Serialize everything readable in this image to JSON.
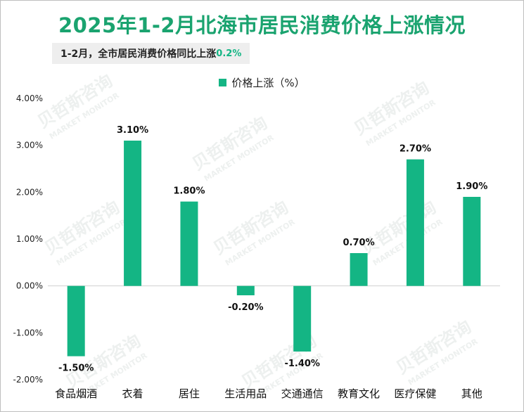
{
  "title": "2025年1-2月北海市居民消费价格上涨情况",
  "subtitle": {
    "text": "1-2月，全市居民消费价格同比上涨",
    "value": "0.2%"
  },
  "legend": {
    "label": "价格上涨（%）",
    "color": "#14b584"
  },
  "watermark": {
    "brand": "贝哲斯咨询",
    "sub": "MARKET MONITOR"
  },
  "chart_data": {
    "type": "bar",
    "title": "2025年1-2月北海市居民消费价格上涨情况",
    "categories": [
      "食品烟酒",
      "衣着",
      "居住",
      "生活用品",
      "交通通信",
      "教育文化",
      "医疗保健",
      "其他"
    ],
    "series": [
      {
        "name": "价格上涨（%）",
        "values": [
          -1.5,
          3.1,
          1.8,
          -0.2,
          -1.4,
          0.7,
          2.7,
          1.9
        ],
        "labels": [
          "-1.50%",
          "3.10%",
          "1.80%",
          "-0.20%",
          "-1.40%",
          "0.70%",
          "2.70%",
          "1.90%"
        ]
      }
    ],
    "ylim": [
      -2,
      4
    ],
    "yticks": [
      4,
      3,
      2,
      1,
      0,
      -1,
      -2
    ],
    "ytick_labels": [
      "4.00%",
      "3.00%",
      "2.00%",
      "1.00%",
      "0.00%",
      "-1.00%",
      "-2.00%"
    ],
    "xlabel": "",
    "ylabel": "",
    "grid": false,
    "legend_position": "top-center"
  }
}
